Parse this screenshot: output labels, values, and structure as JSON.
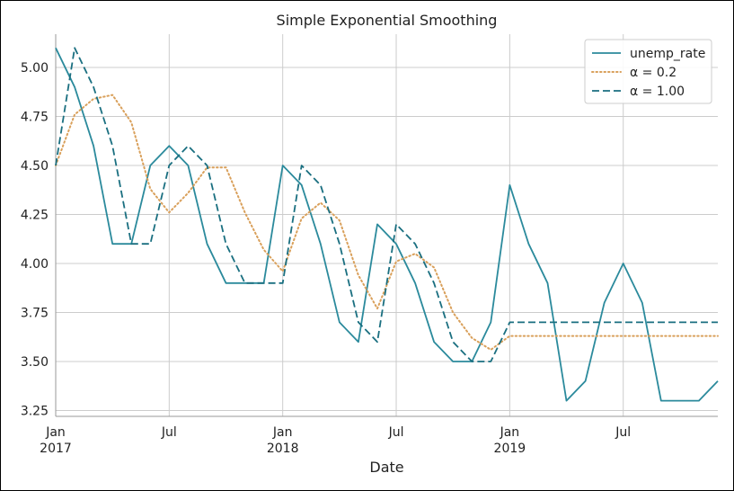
{
  "chart_data": {
    "type": "line",
    "title": "Simple Exponential Smoothing",
    "xlabel": "Date",
    "ylabel": "",
    "x": [
      "2017-01",
      "2017-02",
      "2017-03",
      "2017-04",
      "2017-05",
      "2017-06",
      "2017-07",
      "2017-08",
      "2017-09",
      "2017-10",
      "2017-11",
      "2017-12",
      "2018-01",
      "2018-02",
      "2018-03",
      "2018-04",
      "2018-05",
      "2018-06",
      "2018-07",
      "2018-08",
      "2018-09",
      "2018-10",
      "2018-11",
      "2018-12",
      "2019-01",
      "2019-02",
      "2019-03",
      "2019-04",
      "2019-05",
      "2019-06",
      "2019-07",
      "2019-08",
      "2019-09",
      "2019-10",
      "2019-11",
      "2019-12"
    ],
    "xlim": [
      "2017-01",
      "2019-12"
    ],
    "ylim": [
      3.22,
      5.17
    ],
    "yticks": [
      3.25,
      3.5,
      3.75,
      4.0,
      4.25,
      4.5,
      4.75,
      5.0
    ],
    "ytick_labels": [
      "3.25",
      "3.50",
      "3.75",
      "4.00",
      "4.25",
      "4.50",
      "4.75",
      "5.00"
    ],
    "xticks": [
      {
        "x": "2017-01",
        "line1": "Jan",
        "line2": "2017"
      },
      {
        "x": "2017-07",
        "line1": "Jul",
        "line2": ""
      },
      {
        "x": "2018-01",
        "line1": "Jan",
        "line2": "2018"
      },
      {
        "x": "2018-07",
        "line1": "Jul",
        "line2": ""
      },
      {
        "x": "2019-01",
        "line1": "Jan",
        "line2": "2019"
      },
      {
        "x": "2019-07",
        "line1": "Jul",
        "line2": ""
      }
    ],
    "grid": true,
    "legend_position": "top-right",
    "series": [
      {
        "name": "unemp_rate",
        "style": "solid",
        "color": "#2b8a9c",
        "values": [
          5.1,
          4.9,
          4.6,
          4.1,
          4.1,
          4.5,
          4.6,
          4.5,
          4.1,
          3.9,
          3.9,
          3.9,
          4.5,
          4.4,
          4.1,
          3.7,
          3.6,
          4.2,
          4.1,
          3.9,
          3.6,
          3.5,
          3.5,
          3.7,
          4.4,
          4.1,
          3.9,
          3.3,
          3.4,
          3.8,
          4.0,
          3.8,
          3.3,
          3.3,
          3.3,
          3.4
        ]
      },
      {
        "name": "α = 0.2",
        "style": "dotted",
        "color": "#d9a05b",
        "values": [
          4.5,
          4.76,
          4.84,
          4.86,
          4.72,
          4.38,
          4.26,
          4.36,
          4.49,
          4.49,
          4.26,
          4.07,
          3.96,
          4.23,
          4.31,
          4.22,
          3.94,
          3.77,
          4.01,
          4.05,
          3.98,
          3.75,
          3.62,
          3.56,
          3.63,
          3.63,
          3.63,
          3.63,
          3.63,
          3.63,
          3.63,
          3.63,
          3.63,
          3.63,
          3.63,
          3.63
        ]
      },
      {
        "name": "α = 1.00",
        "style": "dashed",
        "color": "#1a6f80",
        "values": [
          4.5,
          5.1,
          4.9,
          4.6,
          4.1,
          4.1,
          4.5,
          4.6,
          4.5,
          4.1,
          3.9,
          3.9,
          3.9,
          4.5,
          4.4,
          4.1,
          3.7,
          3.6,
          4.2,
          4.1,
          3.9,
          3.6,
          3.5,
          3.5,
          3.7,
          3.7,
          3.7,
          3.7,
          3.7,
          3.7,
          3.7,
          3.7,
          3.7,
          3.7,
          3.7,
          3.7
        ]
      }
    ]
  }
}
